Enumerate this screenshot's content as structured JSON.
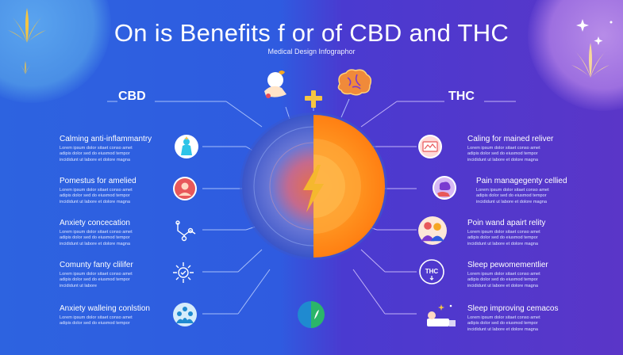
{
  "title": "On is Benefits f or of CBD and THC",
  "subtitle": "Medical Design Infographor",
  "cbd": {
    "heading": "CBD",
    "items": [
      {
        "title": "Calming anti-inflammantry",
        "desc": [
          "Lorem ipsum dolor sitaet conso amet",
          "adipis dolor sed do eiusmod tempor",
          "incididunt ut labore et dolore magna"
        ],
        "icon": "person-icon"
      },
      {
        "title": "Pomestus for amelied",
        "desc": [
          "Lorem ipsum dolor sitaet conso amet",
          "adipis dolor sed do eiusmod tempor",
          "incididunt ut labore et dolore magna"
        ],
        "icon": "avatar-icon"
      },
      {
        "title": "Anxiety concecation",
        "desc": [
          "Lorem ipsum dolor sitaet conso amet",
          "adipis dolor sed do eiusmod tempor",
          "incididunt ut labore et dolore magna"
        ],
        "icon": "molecule-icon"
      },
      {
        "title": "Comunty fanty clilifer",
        "desc": [
          "Lorem ipsum dolor sitaet conso amet",
          "adipis dolor sed do eiusmod tempor",
          "incididunt ut labore"
        ],
        "icon": "sun-icon"
      },
      {
        "title": "Anxiety walleing conlstion",
        "desc": [
          "Lorem ipsum dolor sitaet conso amet",
          "adipis dolor sed do eiusmod tempor"
        ],
        "icon": "group-icon"
      }
    ]
  },
  "thc": {
    "heading": "THC",
    "items": [
      {
        "title": "Caling for mained reliver",
        "desc": [
          "Lorem ipsum dolor sitaet conso amet",
          "adipis dolor sed do eiusmod tempor",
          "incididunt ut labore et dolore magna"
        ],
        "icon": "chart-icon"
      },
      {
        "title": "Pain managegenty cellied",
        "desc": [
          "Lorem ipsum dolor sitaet conso amet",
          "adipis dolor sed do eiusmod tempor",
          "incididunt ut labore et dolore magna"
        ],
        "icon": "brain-hand-icon"
      },
      {
        "title": "Poin wand apairt relity",
        "desc": [
          "Lorem ipsum dolor sitaet conso amet",
          "adipis dolor sed do eiusmod tempor",
          "incididunt ut labore et dolore magna"
        ],
        "icon": "people-icon"
      },
      {
        "title": "Sleep pewomementlier",
        "desc": [
          "Lorem ipsum dolor sitaet conso amet",
          "adipis dolor sed do eiusmod tempor",
          "incididunt ut labore et dolore magna"
        ],
        "icon": "thc-badge-icon"
      },
      {
        "title": "Sleep improving cemacos",
        "desc": [
          "Lorem ipsum dolor sitaet conso amet",
          "adipis dolor sed do eiusmod tempor",
          "incididunt ut labore et dolore magna"
        ],
        "icon": "sleeping-person-icon"
      }
    ]
  },
  "thc_badge_text": "THC",
  "colors": {
    "cbd_bg": "#2f5be0",
    "thc_bg": "#5a36c8",
    "orange": "#ff8a1a",
    "gold": "#f5c542",
    "icon_cyan": "#2ec4e8"
  }
}
